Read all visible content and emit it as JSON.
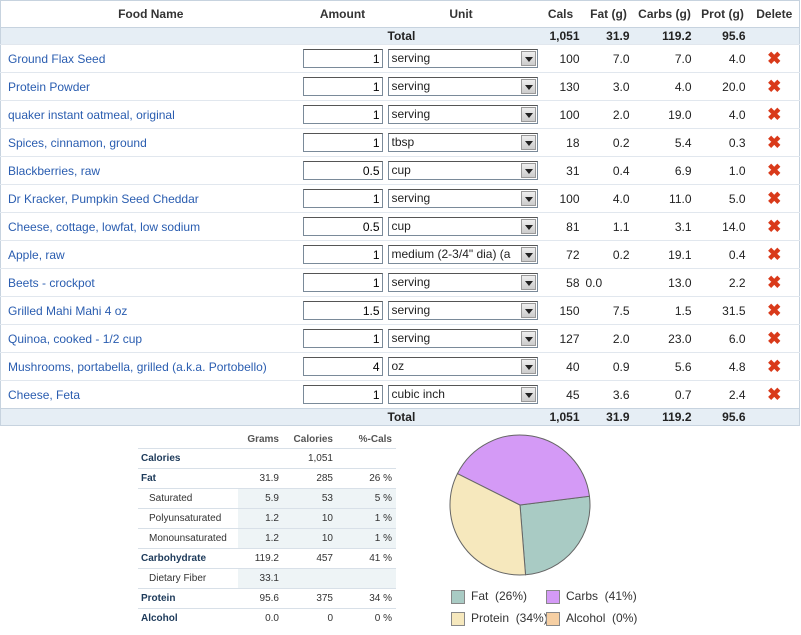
{
  "headers": {
    "food_name": "Food Name",
    "amount": "Amount",
    "unit": "Unit",
    "cals": "Cals",
    "fat": "Fat (g)",
    "carbs": "Carbs (g)",
    "prot": "Prot (g)",
    "delete": "Delete"
  },
  "totals": {
    "label": "Total",
    "cals": "1,051",
    "fat": "31.9",
    "carbs": "119.2",
    "prot": "95.6"
  },
  "foods": [
    {
      "name": "Ground Flax Seed",
      "amount": "1",
      "unit": "serving",
      "cals": "100",
      "fat": "7.0",
      "carbs": "7.0",
      "prot": "4.0"
    },
    {
      "name": "Protein Powder",
      "amount": "1",
      "unit": "serving",
      "cals": "130",
      "fat": "3.0",
      "carbs": "4.0",
      "prot": "20.0"
    },
    {
      "name": "quaker instant oatmeal, original",
      "amount": "1",
      "unit": "serving",
      "cals": "100",
      "fat": "2.0",
      "carbs": "19.0",
      "prot": "4.0"
    },
    {
      "name": "Spices, cinnamon, ground",
      "amount": "1",
      "unit": "tbsp",
      "cals": "18",
      "fat": "0.2",
      "carbs": "5.4",
      "prot": "0.3"
    },
    {
      "name": "Blackberries, raw",
      "amount": "0.5",
      "unit": "cup",
      "cals": "31",
      "fat": "0.4",
      "carbs": "6.9",
      "prot": "1.0"
    },
    {
      "name": "Dr Kracker, Pumpkin Seed Cheddar",
      "amount": "1",
      "unit": "serving",
      "cals": "100",
      "fat": "4.0",
      "carbs": "11.0",
      "prot": "5.0"
    },
    {
      "name": "Cheese, cottage, lowfat, low sodium",
      "amount": "0.5",
      "unit": "cup",
      "cals": "81",
      "fat": "1.1",
      "carbs": "3.1",
      "prot": "14.0"
    },
    {
      "name": "Apple, raw",
      "amount": "1",
      "unit": "medium (2-3/4\" dia) (a",
      "cals": "72",
      "fat": "0.2",
      "carbs": "19.1",
      "prot": "0.4"
    },
    {
      "name": "Beets - crockpot",
      "amount": "1",
      "unit": "serving",
      "cals": "58",
      "fat": "0.0",
      "carbs": "13.0",
      "prot": "2.2"
    },
    {
      "name": "Grilled Mahi Mahi 4 oz",
      "amount": "1.5",
      "unit": "serving",
      "cals": "150",
      "fat": "7.5",
      "carbs": "1.5",
      "prot": "31.5"
    },
    {
      "name": "Quinoa, cooked - 1/2 cup",
      "amount": "1",
      "unit": "serving",
      "cals": "127",
      "fat": "2.0",
      "carbs": "23.0",
      "prot": "6.0"
    },
    {
      "name": "Mushrooms, portabella, grilled (a.k.a. Portobello)",
      "amount": "4",
      "unit": "oz",
      "cals": "40",
      "fat": "0.9",
      "carbs": "5.6",
      "prot": "4.8"
    },
    {
      "name": "Cheese, Feta",
      "amount": "1",
      "unit": "cubic inch",
      "cals": "45",
      "fat": "3.6",
      "carbs": "0.7",
      "prot": "2.4"
    }
  ],
  "delete_icon": "x-icon",
  "summary": {
    "headers": {
      "grams": "Grams",
      "calories": "Calories",
      "pct_cals": "%-Cals"
    },
    "rows": [
      {
        "label": "Calories",
        "grams": "",
        "calories": "1,051",
        "pct": "",
        "kind": "main"
      },
      {
        "label": "Fat",
        "grams": "31.9",
        "calories": "285",
        "pct": "26 %",
        "kind": "main"
      },
      {
        "label": "Saturated",
        "grams": "5.9",
        "calories": "53",
        "pct": "5 %",
        "kind": "sub"
      },
      {
        "label": "Polyunsaturated",
        "grams": "1.2",
        "calories": "10",
        "pct": "1 %",
        "kind": "sub"
      },
      {
        "label": "Monounsaturated",
        "grams": "1.2",
        "calories": "10",
        "pct": "1 %",
        "kind": "sub"
      },
      {
        "label": "Carbohydrate",
        "grams": "119.2",
        "calories": "457",
        "pct": "41 %",
        "kind": "main"
      },
      {
        "label": "Dietary Fiber",
        "grams": "33.1",
        "calories": "",
        "pct": "",
        "kind": "sub"
      },
      {
        "label": "Protein",
        "grams": "95.6",
        "calories": "375",
        "pct": "34 %",
        "kind": "main"
      },
      {
        "label": "Alcohol",
        "grams": "0.0",
        "calories": "0",
        "pct": "0 %",
        "kind": "main"
      }
    ]
  },
  "chart_data": {
    "type": "pie",
    "slices": [
      {
        "name": "Fat",
        "value": 26,
        "color": "#a9cbc4"
      },
      {
        "name": "Carbs",
        "value": 41,
        "color": "#d49af6"
      },
      {
        "name": "Protein",
        "value": 34,
        "color": "#f6e8bd"
      },
      {
        "name": "Alcohol",
        "value": 0,
        "color": "#f6cfa3"
      }
    ],
    "legend": [
      {
        "name": "Fat",
        "pct": "(26%)",
        "color": "#a9cbc4"
      },
      {
        "name": "Carbs",
        "pct": "(41%)",
        "color": "#d49af6"
      },
      {
        "name": "Protein",
        "pct": "(34%)",
        "color": "#f6e8bd"
      },
      {
        "name": "Alcohol",
        "pct": "(0%)",
        "color": "#f6cfa3"
      }
    ],
    "legend_placement": "bottom"
  }
}
